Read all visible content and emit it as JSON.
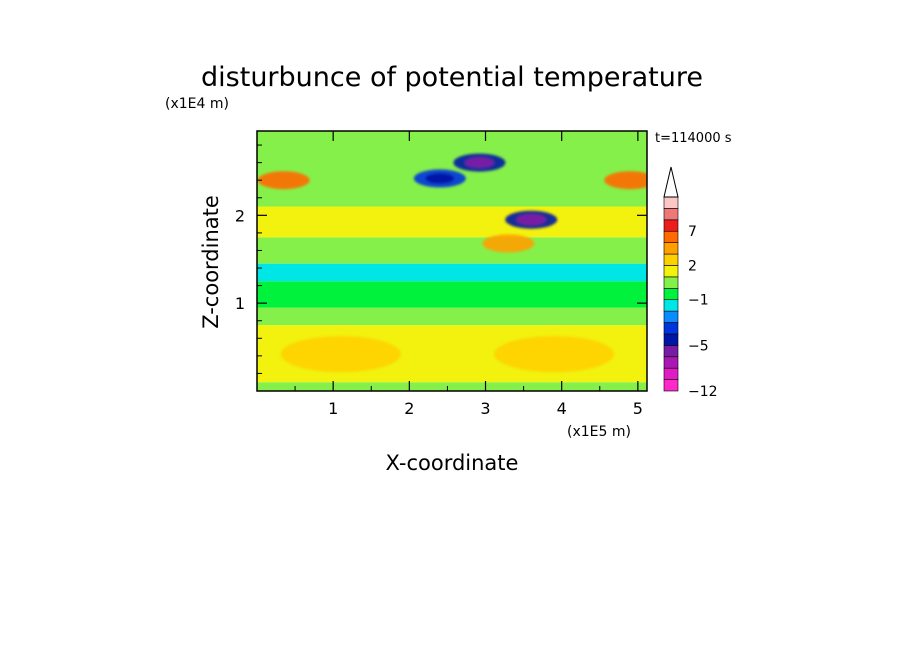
{
  "chart_data": {
    "type": "heatmap",
    "title": "disturbunce of potential temperature",
    "time_label": "t=114000 s",
    "xlabel": "X-coordinate",
    "ylabel": "Z-coordinate",
    "x_unit": "(x1E5 m)",
    "y_unit": "(x1E4 m)",
    "xlim": [
      0,
      5.12
    ],
    "ylim": [
      0,
      2.96
    ],
    "x_ticks": [
      "1",
      "2",
      "3",
      "4",
      "5"
    ],
    "y_ticks": [
      "1",
      "2"
    ],
    "colorbar": {
      "levels": [
        -12,
        -11,
        -9,
        -7,
        -5,
        -4,
        -3,
        -2,
        -1,
        0,
        1,
        2,
        3,
        5,
        7,
        9,
        11
      ],
      "labels": [
        "-12",
        "-5",
        "-1",
        "2",
        "7"
      ],
      "colors": [
        "#ff28c8",
        "#e01cc4",
        "#aa18b4",
        "#781ca6",
        "#0016a6",
        "#0034de",
        "#0a8cff",
        "#00e6e6",
        "#00f23c",
        "#86f04a",
        "#f2f20e",
        "#ffd000",
        "#ffa000",
        "#ff6a00",
        "#ee1c1c",
        "#ee7878",
        "#fbc6c6"
      ],
      "extend": "max"
    },
    "field_summary": [
      {
        "z": [
          0.0,
          0.1
        ],
        "value": 0.5
      },
      {
        "z": [
          0.1,
          0.75
        ],
        "value": 1.5
      },
      {
        "z": [
          0.75,
          0.95
        ],
        "value": 0.5
      },
      {
        "z": [
          0.95,
          1.25
        ],
        "value": -0.5
      },
      {
        "z": [
          1.25,
          1.45
        ],
        "value": -1.5
      },
      {
        "z": [
          1.45,
          1.75
        ],
        "value": 0.5
      },
      {
        "z": [
          1.75,
          2.1
        ],
        "value": 1.5
      },
      {
        "z": [
          2.1,
          2.96
        ],
        "value": 0.5
      }
    ],
    "anomalies": [
      {
        "x": 2.92,
        "z": 2.6,
        "value": -5
      },
      {
        "x": 3.6,
        "z": 1.95,
        "value": -5
      },
      {
        "x": 2.4,
        "z": 2.42,
        "value": -4
      },
      {
        "x": 3.3,
        "z": 1.68,
        "value": 3
      },
      {
        "x": 1.1,
        "z": 0.42,
        "value": 2.5
      },
      {
        "x": 3.9,
        "z": 0.42,
        "value": 2.5
      },
      {
        "x": 0.35,
        "z": 2.4,
        "value": 5
      },
      {
        "x": 4.9,
        "z": 2.4,
        "value": 5
      }
    ]
  }
}
